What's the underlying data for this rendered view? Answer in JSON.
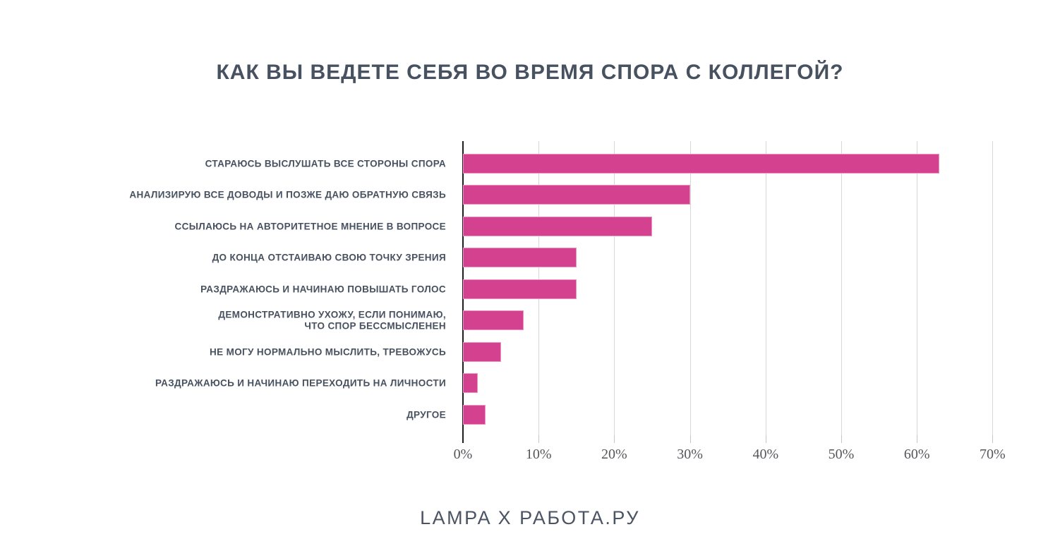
{
  "title": "КАК ВЫ ВЕДЕТЕ СЕБЯ ВО ВРЕМЯ СПОРА С КОЛЛЕГОЙ?",
  "footer": "LAMPA X РАБОТА.РУ",
  "colors": {
    "bar": "#d4418f",
    "bar_edge": "#ec93c6",
    "title_text": "#47515f",
    "label_text": "#47515f",
    "tick_text": "#55565a",
    "gridline": "#d8d8d8",
    "axis": "#1e1e1e",
    "background": "#ffffff"
  },
  "chart_data": {
    "type": "bar",
    "orientation": "horizontal",
    "title": "КАК ВЫ ВЕДЕТЕ СЕБЯ ВО ВРЕМЯ СПОРА С КОЛЛЕГОЙ?",
    "categories": [
      "СТАРАЮСЬ ВЫСЛУШАТЬ ВСЕ СТОРОНЫ СПОРА",
      "АНАЛИЗИРУЮ ВСЕ ДОВОДЫ И ПОЗЖЕ ДАЮ ОБРАТНУЮ СВЯЗЬ",
      "ССЫЛАЮСЬ НА АВТОРИТЕТНОЕ МНЕНИЕ В ВОПРОСЕ",
      "ДО КОНЦА ОТСТАИВАЮ СВОЮ ТОЧКУ ЗРЕНИЯ",
      "РАЗДРАЖАЮСЬ И НАЧИНАЮ ПОВЫШАТЬ ГОЛОС",
      "ДЕМОНСТРАТИВНО УХОЖУ, ЕСЛИ ПОНИМАЮ,\nЧТО СПОР БЕССМЫСЛЕНЕН",
      "НЕ МОГУ НОРМАЛЬНО МЫСЛИТЬ, ТРЕВОЖУСЬ",
      "РАЗДРАЖАЮСЬ И НАЧИНАЮ ПЕРЕХОДИТЬ НА ЛИЧНОСТИ",
      "ДРУГОЕ"
    ],
    "values": [
      63,
      30,
      25,
      15,
      15,
      8,
      5,
      2,
      3
    ],
    "unit": "%",
    "xlabel": "",
    "ylabel": "",
    "xlim": [
      0,
      70
    ],
    "x_ticks": [
      "0%",
      "10%",
      "20%",
      "30%",
      "40%",
      "50%",
      "60%",
      "70%"
    ],
    "grid": true,
    "legend": false,
    "bar_color": "#d4418f"
  }
}
